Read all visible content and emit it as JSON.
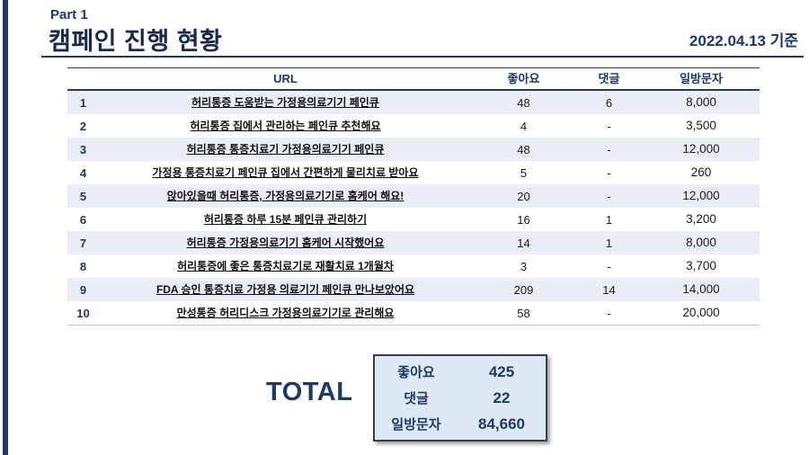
{
  "header": {
    "part_label": "Part 1",
    "title": "캠페인 진행 현황",
    "date_note": "2022.04.13 기준"
  },
  "colors": {
    "accent_navy": "#1f3864",
    "row_alt_bg": "#e9edf6",
    "total_box_bg": "#dde9f5"
  },
  "table": {
    "columns": {
      "url": "URL",
      "likes": "좋아요",
      "comments": "댓글",
      "visitors": "일방문자"
    },
    "rows": [
      {
        "no": "1",
        "url": "허리통증 도움받는 가정용의료기기 페인큐",
        "likes": "48",
        "comments": "6",
        "visitors": "8,000"
      },
      {
        "no": "2",
        "url": "허리통증 집에서 관리하는 페인큐 추천해요",
        "likes": "4",
        "comments": "-",
        "visitors": "3,500"
      },
      {
        "no": "3",
        "url": "허리통증 통증치료기 가정용의료기기 페인큐",
        "likes": "48",
        "comments": "-",
        "visitors": "12,000"
      },
      {
        "no": "4",
        "url": "가정용 통증치료기 페인큐 집에서 간편하게 물리치료 받아요",
        "likes": "5",
        "comments": "-",
        "visitors": "260"
      },
      {
        "no": "5",
        "url": "앉아있을때 허리통증, 가정용의료기기로 홈케어 해요!",
        "likes": "20",
        "comments": "-",
        "visitors": "12,000"
      },
      {
        "no": "6",
        "url": "허리통증 하루 15분 페인큐 관리하기",
        "likes": "16",
        "comments": "1",
        "visitors": "3,200"
      },
      {
        "no": "7",
        "url": "허리통증 가정용의료기기 홈케어 시작했어요",
        "likes": "14",
        "comments": "1",
        "visitors": "8,000"
      },
      {
        "no": "8",
        "url": "허리통증에 좋은 통증치료기로 재활치료 1개월차",
        "likes": "3",
        "comments": "-",
        "visitors": "3,700"
      },
      {
        "no": "9",
        "url": "FDA 승인 통증치료 가정용 의료기기 페인큐 만나보았어요",
        "likes": "209",
        "comments": "14",
        "visitors": "14,000"
      },
      {
        "no": "10",
        "url": "만성통증 허리디스크 가정용의료기기로 관리해요",
        "likes": "58",
        "comments": "-",
        "visitors": "20,000"
      }
    ]
  },
  "total": {
    "label": "TOTAL",
    "rows": [
      {
        "label": "좋아요",
        "value": "425"
      },
      {
        "label": "댓글",
        "value": "22"
      },
      {
        "label": "일방문자",
        "value": "84,660"
      }
    ]
  }
}
